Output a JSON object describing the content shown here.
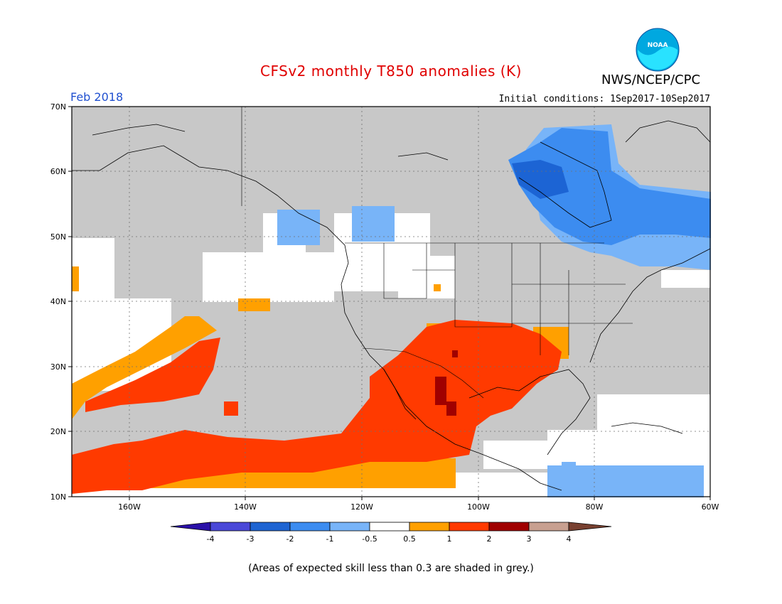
{
  "header": {
    "title": "CFSv2 monthly T850 anomalies (K)",
    "org": "NWS/NCEP/CPC",
    "month": "Feb 2018",
    "initial_conditions": "Initial conditions: 1Sep2017-10Sep2017",
    "logo_text": "NOAA"
  },
  "map": {
    "lat_labels": [
      "70N",
      "60N",
      "50N",
      "40N",
      "30N",
      "20N",
      "10N"
    ],
    "lon_labels": [
      "160W",
      "140W",
      "120W",
      "100W",
      "80W",
      "60W"
    ],
    "colors": {
      "grey": "#c8c8c8",
      "white": "#ffffff",
      "orange": "#ffa000",
      "red_orange": "#ff3a00",
      "dark_red": "#a00000",
      "light_blue": "#78b4f8",
      "mid_blue": "#3c8cf0",
      "deep_blue": "#1c64d4"
    }
  },
  "colorbar": {
    "labels": [
      "-4",
      "-3",
      "-2",
      "-1",
      "-0.5",
      "0.5",
      "1",
      "2",
      "3",
      "4"
    ],
    "colors": [
      "#2a10a8",
      "#4a48d8",
      "#1e64d2",
      "#3c8cf0",
      "#78b4f8",
      "#ffffff",
      "#ffa000",
      "#ff3a00",
      "#a00000",
      "#c8a090",
      "#784030"
    ]
  },
  "footnote": "(Areas of expected skill less than 0.3 are shaded in grey.)"
}
